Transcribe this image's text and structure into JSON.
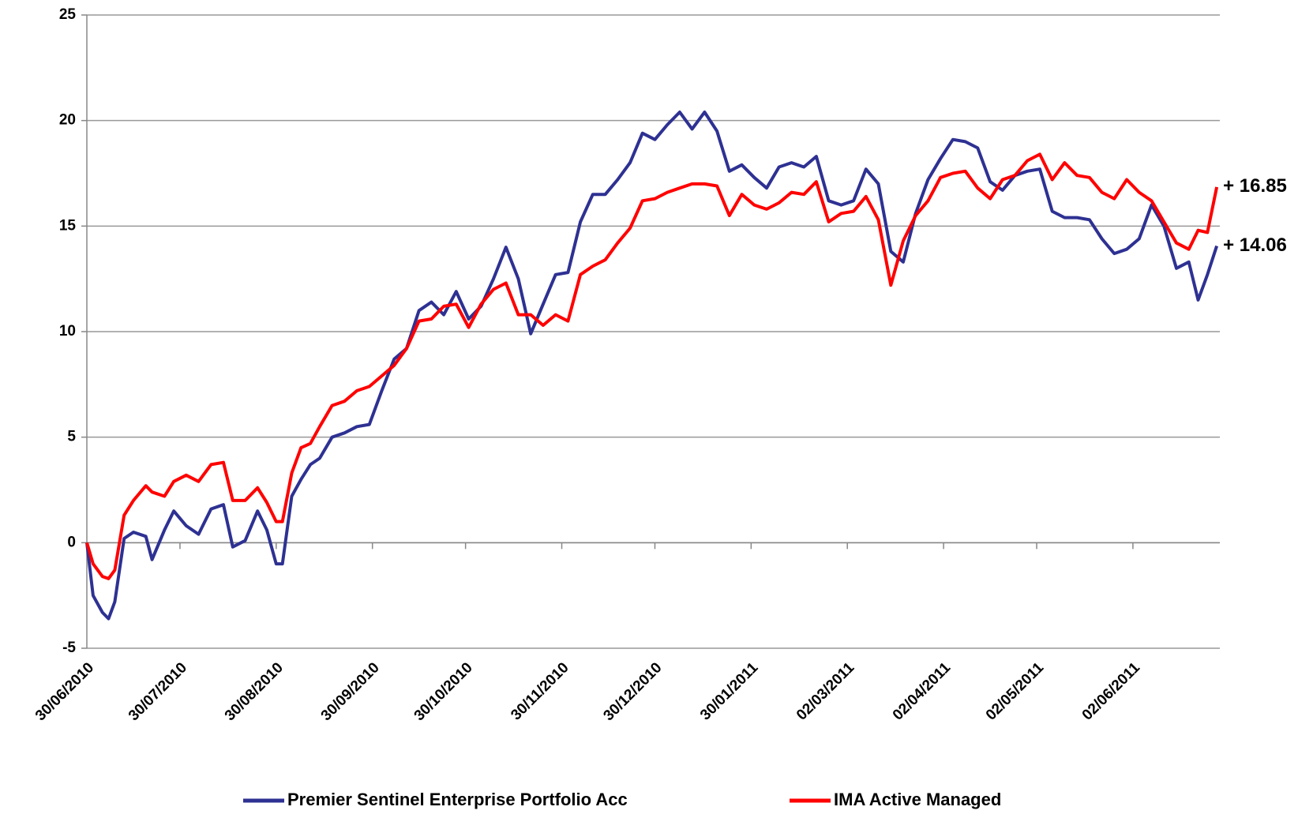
{
  "chart_data": {
    "type": "line",
    "x": [
      "30/06/2010",
      "02/07/2010",
      "05/07/2010",
      "07/07/2010",
      "09/07/2010",
      "12/07/2010",
      "15/07/2010",
      "19/07/2010",
      "21/07/2010",
      "25/07/2010",
      "28/07/2010",
      "01/08/2010",
      "05/08/2010",
      "09/08/2010",
      "13/08/2010",
      "16/08/2010",
      "20/08/2010",
      "24/08/2010",
      "27/08/2010",
      "30/08/2010",
      "01/09/2010",
      "04/09/2010",
      "07/09/2010",
      "10/09/2010",
      "13/09/2010",
      "17/09/2010",
      "21/09/2010",
      "25/09/2010",
      "29/09/2010",
      "03/10/2010",
      "07/10/2010",
      "11/10/2010",
      "15/10/2010",
      "19/10/2010",
      "23/10/2010",
      "27/10/2010",
      "31/10/2010",
      "04/11/2010",
      "08/11/2010",
      "12/11/2010",
      "16/11/2010",
      "20/11/2010",
      "24/11/2010",
      "28/11/2010",
      "02/12/2010",
      "06/12/2010",
      "10/12/2010",
      "14/12/2010",
      "18/12/2010",
      "22/12/2010",
      "26/12/2010",
      "30/12/2010",
      "03/01/2011",
      "07/01/2011",
      "11/01/2011",
      "15/01/2011",
      "19/01/2011",
      "23/01/2011",
      "27/01/2011",
      "31/01/2011",
      "04/02/2011",
      "08/02/2011",
      "12/02/2011",
      "16/02/2011",
      "20/02/2011",
      "24/02/2011",
      "28/02/2011",
      "04/03/2011",
      "08/03/2011",
      "12/03/2011",
      "16/03/2011",
      "20/03/2011",
      "24/03/2011",
      "28/03/2011",
      "01/04/2011",
      "05/04/2011",
      "09/04/2011",
      "13/04/2011",
      "17/04/2011",
      "21/04/2011",
      "25/04/2011",
      "29/04/2011",
      "03/05/2011",
      "07/05/2011",
      "11/05/2011",
      "15/05/2011",
      "19/05/2011",
      "23/05/2011",
      "27/05/2011",
      "31/05/2011",
      "04/06/2011",
      "08/06/2011",
      "12/06/2011",
      "16/06/2011",
      "20/06/2011",
      "23/06/2011",
      "26/06/2011",
      "29/06/2011"
    ],
    "series": [
      {
        "name": "Premier Sentinel Enterprise Portfolio Acc",
        "color": "#2e3192",
        "values": [
          0,
          -2.5,
          -3.3,
          -3.6,
          -2.8,
          0.2,
          0.5,
          0.3,
          -0.8,
          0.6,
          1.5,
          0.8,
          0.4,
          1.6,
          1.8,
          -0.2,
          0.1,
          1.5,
          0.6,
          -1.0,
          -1.0,
          2.2,
          3.0,
          3.7,
          4.0,
          5.0,
          5.2,
          5.5,
          5.6,
          7.2,
          8.7,
          9.2,
          11.0,
          11.4,
          10.8,
          11.9,
          10.6,
          11.2,
          12.5,
          14.0,
          12.5,
          9.9,
          11.3,
          12.7,
          12.8,
          15.2,
          16.5,
          16.5,
          17.2,
          18.0,
          19.4,
          19.1,
          19.8,
          20.4,
          19.6,
          20.4,
          19.5,
          17.6,
          17.9,
          17.3,
          16.8,
          17.8,
          18.0,
          17.8,
          18.3,
          16.2,
          16.0,
          16.2,
          17.7,
          17.0,
          13.8,
          13.3,
          15.6,
          17.2,
          18.2,
          19.1,
          19.0,
          18.7,
          17.1,
          16.7,
          17.4,
          17.6,
          17.7,
          15.7,
          15.4,
          15.4,
          15.3,
          14.4,
          13.7,
          13.9,
          14.4,
          16.0,
          15.0,
          13.0,
          13.3,
          11.5,
          12.7,
          14.06
        ],
        "value_labels": [
          null,
          null,
          null,
          null,
          null,
          null,
          null,
          null,
          null,
          null,
          null,
          null,
          null,
          null,
          null,
          null,
          null,
          null,
          null,
          null,
          null,
          null,
          null,
          null,
          null,
          null,
          null,
          null,
          null,
          null,
          null,
          null,
          null,
          null,
          null,
          null,
          null,
          null,
          null,
          null,
          null,
          null,
          null,
          null,
          null,
          null,
          null,
          null,
          null,
          null,
          null,
          null,
          null,
          null,
          null,
          null,
          null,
          null,
          null,
          null,
          null,
          null,
          null,
          null,
          null,
          null,
          null,
          null,
          null,
          null,
          null,
          null,
          null,
          null,
          null,
          null,
          null,
          null,
          null,
          null,
          null,
          null,
          null,
          null,
          null,
          null,
          null,
          null,
          null,
          null,
          null,
          null,
          null,
          null,
          null,
          null,
          null,
          "+ 14.06"
        ]
      },
      {
        "name": "IMA Active Managed",
        "color": "#ff0000",
        "values": [
          0,
          -1.0,
          -1.6,
          -1.7,
          -1.3,
          1.3,
          2.0,
          2.7,
          2.4,
          2.2,
          2.9,
          3.2,
          2.9,
          3.7,
          3.8,
          2.0,
          2.0,
          2.6,
          1.9,
          1.0,
          1.0,
          3.3,
          4.5,
          4.7,
          5.5,
          6.5,
          6.7,
          7.2,
          7.4,
          7.9,
          8.4,
          9.2,
          10.5,
          10.6,
          11.2,
          11.3,
          10.2,
          11.3,
          12.0,
          12.3,
          10.8,
          10.8,
          10.3,
          10.8,
          10.5,
          12.7,
          13.1,
          13.4,
          14.2,
          14.9,
          16.2,
          16.3,
          16.6,
          16.8,
          17.0,
          17.0,
          16.9,
          15.5,
          16.5,
          16.0,
          15.8,
          16.1,
          16.6,
          16.5,
          17.1,
          15.2,
          15.6,
          15.7,
          16.4,
          15.3,
          12.2,
          14.3,
          15.5,
          16.2,
          17.3,
          17.5,
          17.6,
          16.8,
          16.3,
          17.2,
          17.4,
          18.1,
          18.4,
          17.2,
          18.0,
          17.4,
          17.3,
          16.6,
          16.3,
          17.2,
          16.6,
          16.2,
          15.2,
          14.2,
          13.9,
          14.8,
          14.7,
          16.85
        ],
        "value_labels": [
          null,
          null,
          null,
          null,
          null,
          null,
          null,
          null,
          null,
          null,
          null,
          null,
          null,
          null,
          null,
          null,
          null,
          null,
          null,
          null,
          null,
          null,
          null,
          null,
          null,
          null,
          null,
          null,
          null,
          null,
          null,
          null,
          null,
          null,
          null,
          null,
          null,
          null,
          null,
          null,
          null,
          null,
          null,
          null,
          null,
          null,
          null,
          null,
          null,
          null,
          null,
          null,
          null,
          null,
          null,
          null,
          null,
          null,
          null,
          null,
          null,
          null,
          null,
          null,
          null,
          null,
          null,
          null,
          null,
          null,
          null,
          null,
          null,
          null,
          null,
          null,
          null,
          null,
          null,
          null,
          null,
          null,
          null,
          null,
          null,
          null,
          null,
          null,
          null,
          null,
          null,
          null,
          null,
          null,
          null,
          null,
          null,
          "+ 16.85"
        ]
      }
    ],
    "xlim": [
      "30/06/2010",
      "30/06/2011"
    ],
    "xticks": [
      "30/06/2010",
      "30/07/2010",
      "30/08/2010",
      "30/09/2010",
      "30/10/2010",
      "30/11/2010",
      "30/12/2010",
      "30/01/2011",
      "02/03/2011",
      "02/04/2011",
      "02/05/2011",
      "02/06/2011"
    ],
    "ylim": [
      -5,
      25
    ],
    "yticks": [
      -5,
      0,
      5,
      10,
      15,
      20,
      25
    ],
    "grid": true,
    "legend": "bottom"
  }
}
